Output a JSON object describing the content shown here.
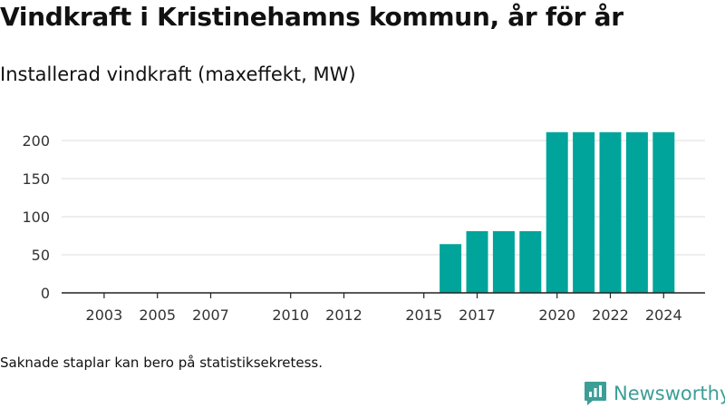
{
  "title": "Vindkraft i Kristinehamns kommun, år för år",
  "subtitle": "Installerad vindkraft (maxeffekt, MW)",
  "footnote": "Saknade staplar kan bero på statistiksekretess.",
  "brand": {
    "name": "Newsworthy",
    "color": "#3c9e96"
  },
  "chart_data": {
    "type": "bar",
    "color": "#00a49a",
    "grid": true,
    "ylim": [
      0,
      200
    ],
    "yticks": [
      0,
      50,
      100,
      150,
      200
    ],
    "x_range": [
      2002,
      2025
    ],
    "xticks": [
      2003,
      2005,
      2007,
      2010,
      2012,
      2015,
      2017,
      2020,
      2022,
      2024
    ],
    "x": [
      2016,
      2017,
      2018,
      2019,
      2020,
      2021,
      2022,
      2023,
      2024
    ],
    "values": [
      64,
      81,
      81,
      81,
      211,
      211,
      211,
      211,
      211
    ],
    "xlabel": "",
    "ylabel": ""
  }
}
